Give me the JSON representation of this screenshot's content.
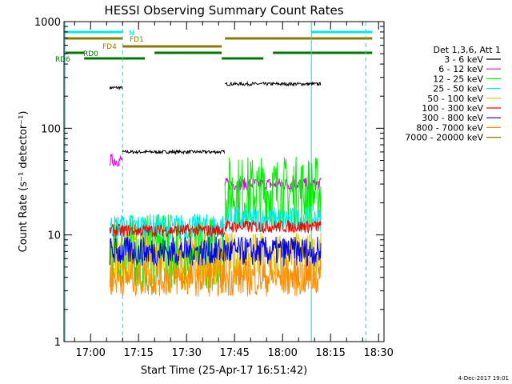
{
  "chart_data": {
    "type": "line",
    "title": "HESSI Observing Summary Count Rates",
    "xlabel": "Start Time (25-Apr-17 16:51:42)",
    "ylabel": "Count Rate (s⁻¹ detector⁻¹)",
    "y_scale": "log",
    "ylim": [
      1,
      1000
    ],
    "xlim_minutes_after_start": [
      0,
      100
    ],
    "x_tick_labels": [
      "17:00",
      "17:15",
      "17:30",
      "17:45",
      "18:00",
      "18:15",
      "18:30"
    ],
    "y_tick_labels": [
      "1",
      "10",
      "100",
      "1000"
    ],
    "legend_title": "Det 1,3,6, Att 1",
    "legend_placement": "right",
    "footer_date": "4-Dec-2017 19:01",
    "series": [
      {
        "name": "3 - 6 keV",
        "color": "#000000",
        "segments": [
          {
            "t": [
              "17:06",
              "17:10"
            ],
            "value": 240
          },
          {
            "t": [
              "17:10",
              "17:42"
            ],
            "value": 60
          },
          {
            "t": [
              "17:42",
              "18:12"
            ],
            "value": 260
          }
        ]
      },
      {
        "name": "6 - 12 keV",
        "color": "#e000e0",
        "segments": [
          {
            "t": [
              "17:06",
              "17:10"
            ],
            "value": 50
          },
          {
            "t": [
              "17:42",
              "18:12"
            ],
            "value": 30
          }
        ]
      },
      {
        "name": "12 - 25 keV",
        "color": "#00ee00",
        "segments": [
          {
            "t": [
              "17:06",
              "17:42"
            ],
            "value": 7
          },
          {
            "t": [
              "17:42",
              "18:12"
            ],
            "value": 25
          }
        ]
      },
      {
        "name": "25 - 50 keV",
        "color": "#00e8e8",
        "segments": [
          {
            "t": [
              "17:06",
              "17:42"
            ],
            "value": 12
          },
          {
            "t": [
              "17:42",
              "18:12"
            ],
            "value": 14
          }
        ]
      },
      {
        "name": "50 - 100 keV",
        "color": "#e0c000",
        "segments": [
          {
            "t": [
              "17:06",
              "18:12"
            ],
            "value": 6
          }
        ]
      },
      {
        "name": "100 - 300 keV",
        "color": "#ff0000",
        "segments": [
          {
            "t": [
              "17:06",
              "17:42"
            ],
            "value": 11
          },
          {
            "t": [
              "17:42",
              "18:12"
            ],
            "value": 12
          }
        ]
      },
      {
        "name": "300 - 800 keV",
        "color": "#0000ff",
        "segments": [
          {
            "t": [
              "17:06",
              "18:12"
            ],
            "value": 7
          }
        ]
      },
      {
        "name": "800 - 7000 keV",
        "color": "#ff8c00",
        "segments": [
          {
            "t": [
              "17:06",
              "18:12"
            ],
            "value": 4
          }
        ]
      },
      {
        "name": "7000 - 20000 keV",
        "color": "#8b7a00",
        "segments": []
      }
    ],
    "flag_bars": [
      {
        "label": "N",
        "color": "#00e8e8",
        "level": 1,
        "intervals": [
          [
            "16:52",
            "17:10"
          ],
          [
            "18:09",
            "18:28"
          ]
        ]
      },
      {
        "label": "FD1",
        "color": "#8b7a00",
        "level": 2,
        "intervals": [
          [
            "16:52",
            "17:10"
          ],
          [
            "17:42",
            "18:28"
          ]
        ]
      },
      {
        "label": "FD4",
        "color": "#8b7a00",
        "level": 3,
        "intervals": [
          [
            "17:10",
            "17:41"
          ]
        ]
      },
      {
        "label": "RD0",
        "color": "#007800",
        "level": 4,
        "intervals": [
          [
            "16:52",
            "16:58"
          ],
          [
            "17:20",
            "17:41"
          ],
          [
            "17:57",
            "18:28"
          ]
        ]
      },
      {
        "label": "RD6",
        "color": "#007800",
        "level": 5,
        "intervals": [
          [
            "16:58",
            "17:17"
          ],
          [
            "17:41",
            "17:54"
          ]
        ]
      }
    ],
    "vertical_markers": [
      {
        "time": "16:52",
        "style": "solid"
      },
      {
        "time": "17:10",
        "style": "dashed"
      },
      {
        "time": "18:09",
        "style": "solid"
      },
      {
        "time": "18:26",
        "style": "dashed"
      }
    ]
  }
}
